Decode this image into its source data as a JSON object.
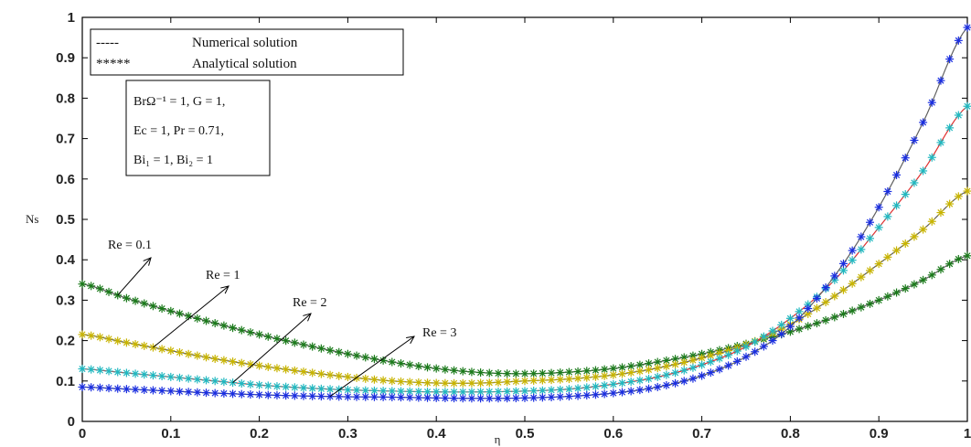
{
  "chart_data": {
    "type": "line",
    "xlabel": "η",
    "ylabel": "Ns",
    "xlim": [
      0,
      1
    ],
    "ylim": [
      0,
      1
    ],
    "xticks": [
      "0",
      "0.1",
      "0.2",
      "0.3",
      "0.4",
      "0.5",
      "0.6",
      "0.7",
      "0.8",
      "0.9",
      "1"
    ],
    "yticks": [
      "0",
      "0.1",
      "0.2",
      "0.3",
      "0.4",
      "0.5",
      "0.6",
      "0.7",
      "0.8",
      "0.9",
      "1"
    ],
    "grid": false,
    "legend": {
      "placement": "top-left",
      "entries": [
        {
          "marker": "-----",
          "label": "Numerical solution"
        },
        {
          "marker": "*****",
          "label": "Analytical solution"
        }
      ]
    },
    "parameter_box": {
      "lines": [
        "BrΩ⁻¹ = 1, G = 1,",
        "Ec = 1, Pr = 0.71,",
        "Bi₁ = 1, Bi₂ = 1"
      ]
    },
    "annotations": [
      {
        "text": "Re = 0.1",
        "series": 0
      },
      {
        "text": "Re = 1",
        "series": 1
      },
      {
        "text": "Re = 2",
        "series": 2
      },
      {
        "text": "Re = 3",
        "series": 3
      }
    ],
    "x": [
      0,
      0.05,
      0.1,
      0.15,
      0.2,
      0.25,
      0.3,
      0.35,
      0.4,
      0.45,
      0.5,
      0.55,
      0.6,
      0.65,
      0.7,
      0.75,
      0.8,
      0.85,
      0.9,
      0.95,
      1
    ],
    "series": [
      {
        "curve_color": "#606060",
        "marker_color": "#1a7a1a",
        "values": [
          0.34,
          0.305,
          0.273,
          0.243,
          0.215,
          0.19,
          0.167,
          0.147,
          0.131,
          0.121,
          0.118,
          0.122,
          0.131,
          0.147,
          0.167,
          0.192,
          0.222,
          0.258,
          0.3,
          0.35,
          0.41
        ]
      },
      {
        "curve_color": "#606060",
        "marker_color": "#c8b400",
        "values": [
          0.215,
          0.195,
          0.175,
          0.155,
          0.138,
          0.123,
          0.11,
          0.1,
          0.095,
          0.095,
          0.1,
          0.105,
          0.115,
          0.132,
          0.157,
          0.19,
          0.24,
          0.31,
          0.39,
          0.475,
          0.57
        ]
      },
      {
        "curve_color": "#e03030",
        "marker_color": "#20b8c0",
        "values": [
          0.13,
          0.12,
          0.11,
          0.1,
          0.09,
          0.083,
          0.078,
          0.075,
          0.073,
          0.073,
          0.075,
          0.08,
          0.092,
          0.11,
          0.14,
          0.185,
          0.255,
          0.35,
          0.48,
          0.62,
          0.78
        ]
      },
      {
        "curve_color": "#606060",
        "marker_color": "#1a2ee0",
        "values": [
          0.085,
          0.08,
          0.075,
          0.07,
          0.066,
          0.063,
          0.061,
          0.06,
          0.058,
          0.057,
          0.058,
          0.062,
          0.07,
          0.085,
          0.113,
          0.16,
          0.235,
          0.36,
          0.53,
          0.74,
          0.975
        ]
      }
    ]
  }
}
